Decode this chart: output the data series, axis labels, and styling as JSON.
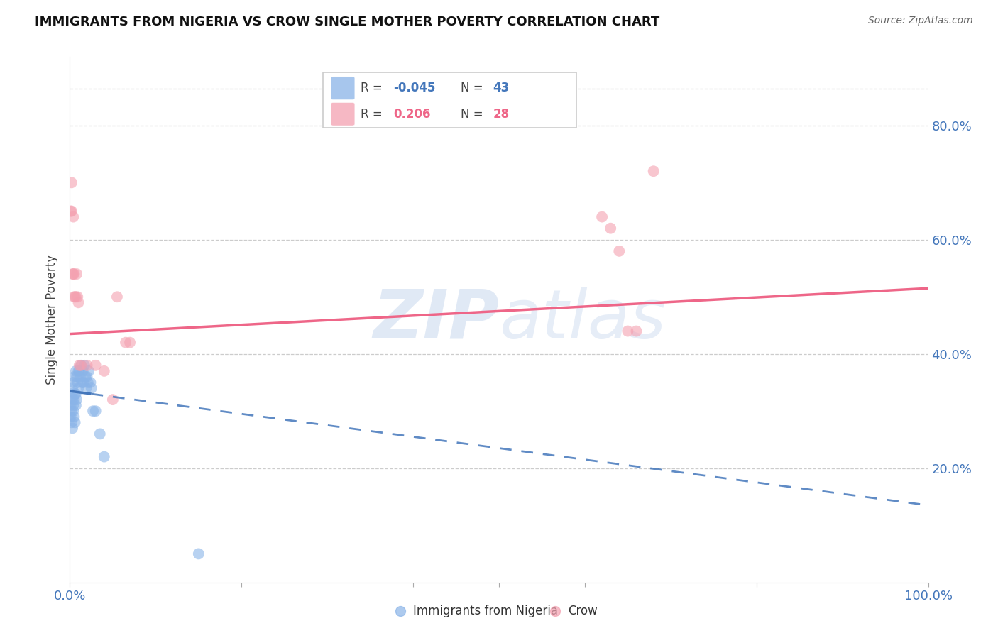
{
  "title": "IMMIGRANTS FROM NIGERIA VS CROW SINGLE MOTHER POVERTY CORRELATION CHART",
  "source": "Source: ZipAtlas.com",
  "ylabel": "Single Mother Poverty",
  "yticks": [
    0.2,
    0.4,
    0.6,
    0.8
  ],
  "ytick_labels": [
    "20.0%",
    "40.0%",
    "60.0%",
    "80.0%"
  ],
  "legend1_label": "Immigrants from Nigeria",
  "legend2_label": "Crow",
  "r1": "-0.045",
  "n1": "43",
  "r2": "0.206",
  "n2": "28",
  "blue_color": "#8ab4e8",
  "pink_color": "#f4a0b0",
  "blue_line_color": "#4477BB",
  "pink_line_color": "#EE6688",
  "watermark_zip": "ZIP",
  "watermark_atlas": "atlas",
  "nigeria_x": [
    0.001,
    0.001,
    0.002,
    0.002,
    0.002,
    0.003,
    0.003,
    0.003,
    0.004,
    0.004,
    0.004,
    0.005,
    0.005,
    0.005,
    0.006,
    0.006,
    0.007,
    0.007,
    0.007,
    0.008,
    0.008,
    0.009,
    0.01,
    0.01,
    0.011,
    0.012,
    0.013,
    0.014,
    0.015,
    0.016,
    0.017,
    0.018,
    0.019,
    0.02,
    0.021,
    0.022,
    0.024,
    0.025,
    0.027,
    0.03,
    0.035,
    0.04,
    0.15
  ],
  "nigeria_y": [
    0.31,
    0.29,
    0.33,
    0.3,
    0.28,
    0.34,
    0.32,
    0.27,
    0.35,
    0.31,
    0.3,
    0.36,
    0.32,
    0.29,
    0.33,
    0.28,
    0.37,
    0.33,
    0.31,
    0.36,
    0.32,
    0.35,
    0.37,
    0.34,
    0.37,
    0.36,
    0.38,
    0.35,
    0.37,
    0.35,
    0.38,
    0.36,
    0.34,
    0.36,
    0.35,
    0.37,
    0.35,
    0.34,
    0.3,
    0.3,
    0.26,
    0.22,
    0.05
  ],
  "crow_x": [
    0.001,
    0.002,
    0.002,
    0.003,
    0.004,
    0.004,
    0.005,
    0.005,
    0.006,
    0.007,
    0.008,
    0.009,
    0.01,
    0.011,
    0.013,
    0.02,
    0.03,
    0.04,
    0.05,
    0.055,
    0.065,
    0.07,
    0.62,
    0.63,
    0.64,
    0.65,
    0.66,
    0.68
  ],
  "crow_y": [
    0.65,
    0.7,
    0.65,
    0.54,
    0.64,
    0.54,
    0.54,
    0.5,
    0.5,
    0.5,
    0.54,
    0.5,
    0.49,
    0.38,
    0.38,
    0.38,
    0.38,
    0.37,
    0.32,
    0.5,
    0.42,
    0.42,
    0.64,
    0.62,
    0.58,
    0.44,
    0.44,
    0.72
  ]
}
